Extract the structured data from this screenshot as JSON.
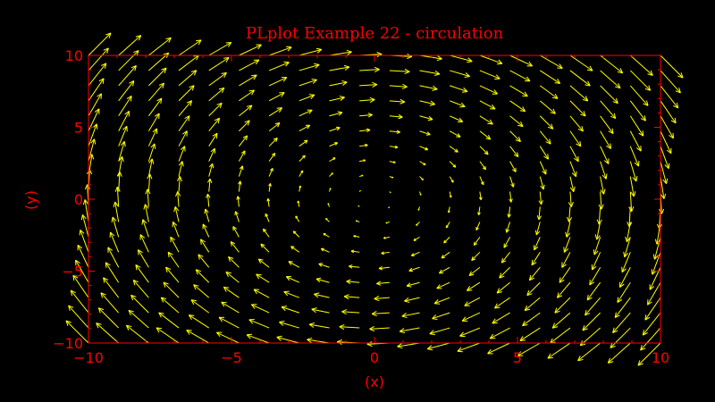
{
  "chart_data": {
    "type": "vector-field",
    "title": "PLplot Example 22 - circulation",
    "xlabel": "(x)",
    "ylabel": "(y)",
    "xlim": [
      -10,
      10
    ],
    "ylim": [
      -10,
      10
    ],
    "xticks": [
      -10,
      -5,
      0,
      5,
      10
    ],
    "yticks": [
      -10,
      -5,
      0,
      5,
      10
    ],
    "grid": false,
    "field": {
      "nx": 20,
      "ny": 20,
      "u_formula": "y",
      "v_formula": "-x"
    },
    "colors": {
      "background": "#000000",
      "axes": "#ff0000",
      "arrows": "#ffff00"
    }
  }
}
